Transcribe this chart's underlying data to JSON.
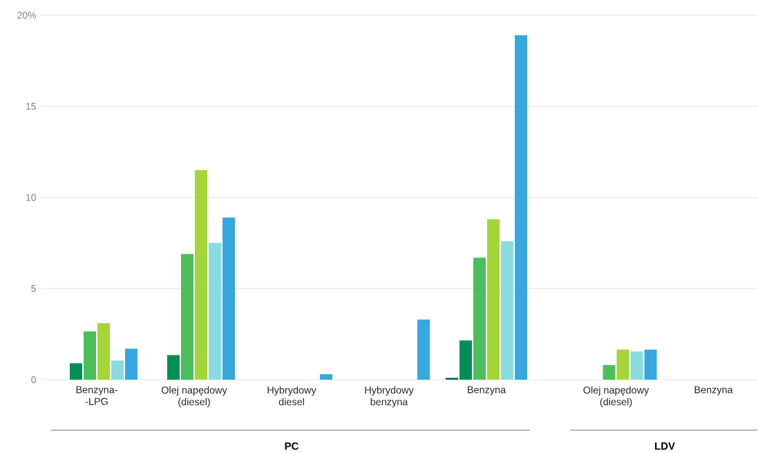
{
  "chart_data": {
    "type": "bar",
    "categories": [
      "Benzyna- -LPG",
      "Olej napędowy (diesel)",
      "Hybrydowy diesel",
      "Hybrydowy benzyna",
      "Benzyna",
      "Olej napędowy (diesel)",
      "Benzyna"
    ],
    "series": [
      {
        "color": "#0b5f5a",
        "values": [
          0,
          0,
          0,
          0,
          0.1,
          0,
          0
        ]
      },
      {
        "color": "#008e57",
        "values": [
          0.9,
          1.35,
          0,
          0,
          2.15,
          0,
          0
        ]
      },
      {
        "color": "#4cbe5a",
        "values": [
          2.65,
          6.9,
          0,
          0,
          6.7,
          0.8,
          0
        ]
      },
      {
        "color": "#a4d637",
        "values": [
          3.1,
          11.5,
          0,
          0,
          8.8,
          1.65,
          0
        ]
      },
      {
        "color": "#88dcdf",
        "values": [
          1.05,
          7.5,
          0,
          0,
          7.6,
          1.55,
          0
        ]
      },
      {
        "color": "#37a7df",
        "values": [
          1.7,
          8.9,
          0.3,
          3.3,
          18.9,
          1.65,
          0
        ]
      }
    ],
    "ylim": [
      0,
      20
    ],
    "yticks": [
      0,
      5,
      10,
      15,
      {
        "value": 20,
        "label": "20%"
      }
    ],
    "grid": "y",
    "annotations": [
      "PC",
      "LDV"
    ]
  }
}
